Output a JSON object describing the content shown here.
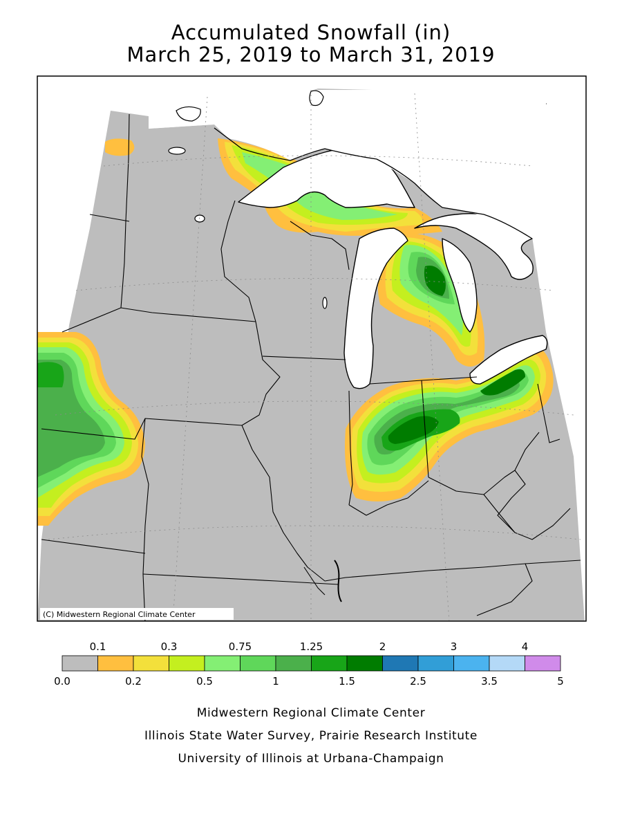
{
  "title": {
    "line1": "Accumulated Snowfall (in)",
    "line2": "March 25, 2019 to March 31, 2019"
  },
  "map": {
    "copyright": "(C) Midwestern Regional Climate Center",
    "colors": {
      "background_gray": "#bdbdbd",
      "lake_fill": "#ffffff",
      "boundary": "#000000"
    }
  },
  "legend": {
    "top_labels": [
      "0.1",
      "0.3",
      "0.75",
      "1.25",
      "2",
      "3",
      "4"
    ],
    "bottom_labels": [
      "0.0",
      "0.2",
      "0.5",
      "1",
      "1.5",
      "2.5",
      "3.5",
      "5"
    ],
    "bins": [
      {
        "range": "0.0-0.1",
        "color": "#bdbdbd"
      },
      {
        "range": "0.1-0.2",
        "color": "#ffbf3f"
      },
      {
        "range": "0.2-0.3",
        "color": "#f3e03b"
      },
      {
        "range": "0.3-0.5",
        "color": "#c4ef1f"
      },
      {
        "range": "0.5-0.75",
        "color": "#84ef74"
      },
      {
        "range": "0.75-1",
        "color": "#5fd75a"
      },
      {
        "range": "1-1.25",
        "color": "#4bb04b"
      },
      {
        "range": "1.25-1.5",
        "color": "#18a518"
      },
      {
        "range": "1.5-2",
        "color": "#007c00"
      },
      {
        "range": "2-2.5",
        "color": "#1f78b4"
      },
      {
        "range": "2.5-3",
        "color": "#319ed7"
      },
      {
        "range": "3-3.5",
        "color": "#4bb3ef"
      },
      {
        "range": "3.5-4",
        "color": "#b4d9f7"
      },
      {
        "range": "4-5",
        "color": "#d08bea"
      }
    ]
  },
  "credits": {
    "line1": "Midwestern Regional Climate Center",
    "line2": "Illinois State Water Survey, Prairie Research Institute",
    "line3": "University of Illinois at Urbana-Champaign"
  }
}
